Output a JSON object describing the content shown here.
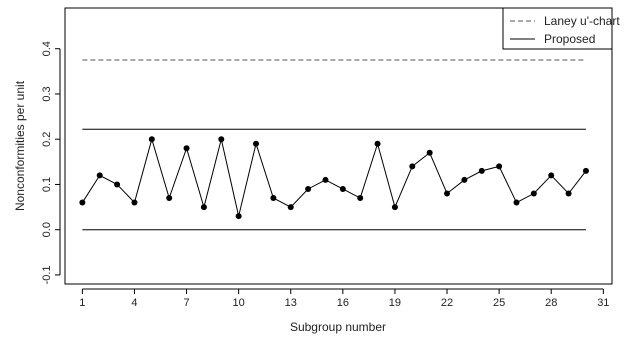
{
  "chart_data": {
    "type": "line",
    "xlabel": "Subgroup number",
    "ylabel": "Nonconformities per unit",
    "xlim": [
      0,
      31.5
    ],
    "ylim": [
      -0.12,
      0.49
    ],
    "x_ticks": [
      1,
      4,
      7,
      10,
      13,
      16,
      19,
      22,
      25,
      28,
      31
    ],
    "y_ticks": [
      -0.1,
      0.0,
      0.1,
      0.2,
      0.3,
      0.4
    ],
    "y_tick_labels": [
      "-0.1",
      "0.0",
      "0.1",
      "0.2",
      "0.3",
      "0.4"
    ],
    "legend_position": "top-right",
    "legend": [
      {
        "name": "Laney u'-chart",
        "style": "dashed"
      },
      {
        "name": "Proposed",
        "style": "solid"
      }
    ],
    "series": [
      {
        "name": "",
        "style": "solid-with-points",
        "x": [
          1,
          2,
          3,
          4,
          5,
          6,
          7,
          8,
          9,
          10,
          11,
          12,
          13,
          14,
          15,
          16,
          17,
          18,
          19,
          20,
          21,
          22,
          23,
          24,
          25,
          26,
          27,
          28,
          29,
          30
        ],
        "values": [
          0.06,
          0.12,
          0.1,
          0.06,
          0.2,
          0.07,
          0.18,
          0.05,
          0.2,
          0.03,
          0.19,
          0.07,
          0.05,
          0.09,
          0.11,
          0.09,
          0.07,
          0.19,
          0.05,
          0.14,
          0.17,
          0.08,
          0.11,
          0.13,
          0.14,
          0.06,
          0.08,
          0.12,
          0.08,
          0.13
        ]
      }
    ],
    "limit_lines": [
      {
        "name": "Laney u'-chart",
        "style": "dashed",
        "value": 0.375,
        "x_range": [
          1,
          30
        ]
      },
      {
        "name": "Proposed",
        "style": "solid",
        "value": 0.222,
        "x_range": [
          1,
          30
        ]
      },
      {
        "name": "Proposed",
        "style": "solid",
        "value": 0.0,
        "x_range": [
          1,
          30
        ]
      }
    ],
    "colors": {
      "line": "#000000",
      "point": "#000000",
      "dashed": "#555555"
    }
  }
}
